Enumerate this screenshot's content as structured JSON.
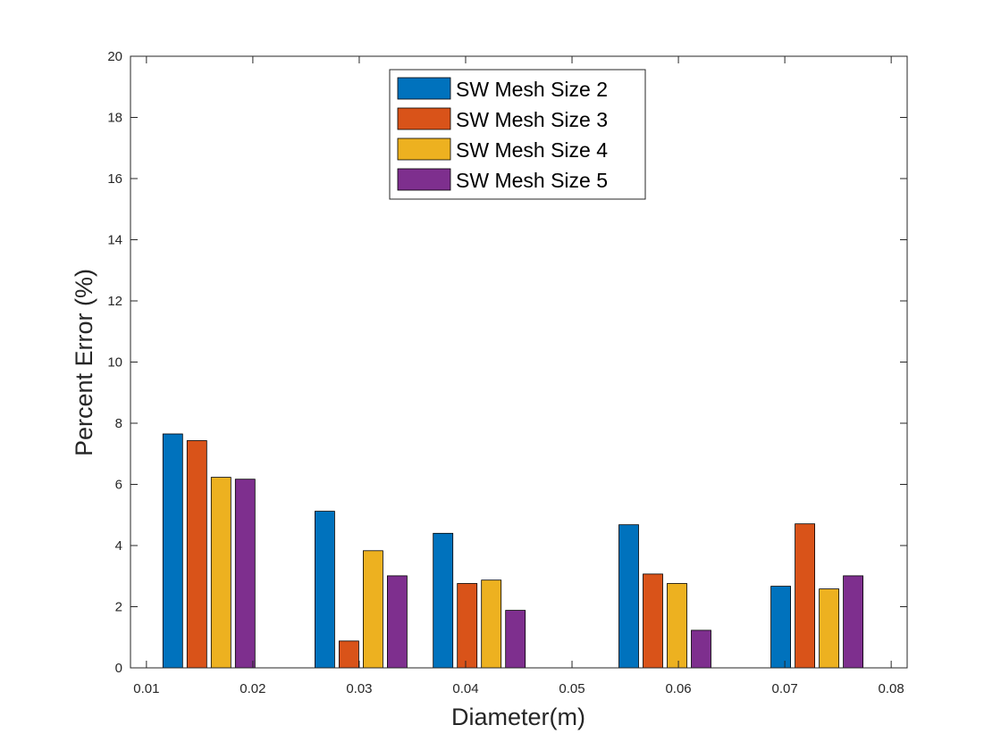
{
  "chart_data": {
    "type": "bar",
    "title": "",
    "xlabel": "Diameter(m)",
    "ylabel": "Percent Error (%)",
    "xlim": [
      0.0085,
      0.0815
    ],
    "ylim": [
      0,
      20
    ],
    "xticks": [
      "0.01",
      "0.02",
      "0.03",
      "0.04",
      "0.05",
      "0.06",
      "0.07",
      "0.08"
    ],
    "yticks": [
      "0",
      "2",
      "4",
      "6",
      "8",
      "10",
      "12",
      "14",
      "16",
      "18",
      "20"
    ],
    "grid": false,
    "legend_position": "top-center",
    "group_centers": [
      0.015875,
      0.030163,
      0.041275,
      0.058738,
      0.073025
    ],
    "series": [
      {
        "name": "SW Mesh Size 2",
        "color": "#0072BD",
        "values": [
          7.65,
          5.12,
          4.4,
          4.68,
          2.67
        ]
      },
      {
        "name": "SW Mesh Size 3",
        "color": "#D95319",
        "values": [
          7.43,
          0.88,
          2.76,
          3.07,
          4.71
        ]
      },
      {
        "name": "SW Mesh Size 4",
        "color": "#EDB120",
        "values": [
          6.23,
          3.83,
          2.87,
          2.76,
          2.58
        ]
      },
      {
        "name": "SW Mesh Size 5",
        "color": "#7E2F8E",
        "values": [
          6.17,
          3.01,
          1.88,
          1.23,
          3.01
        ]
      }
    ]
  }
}
